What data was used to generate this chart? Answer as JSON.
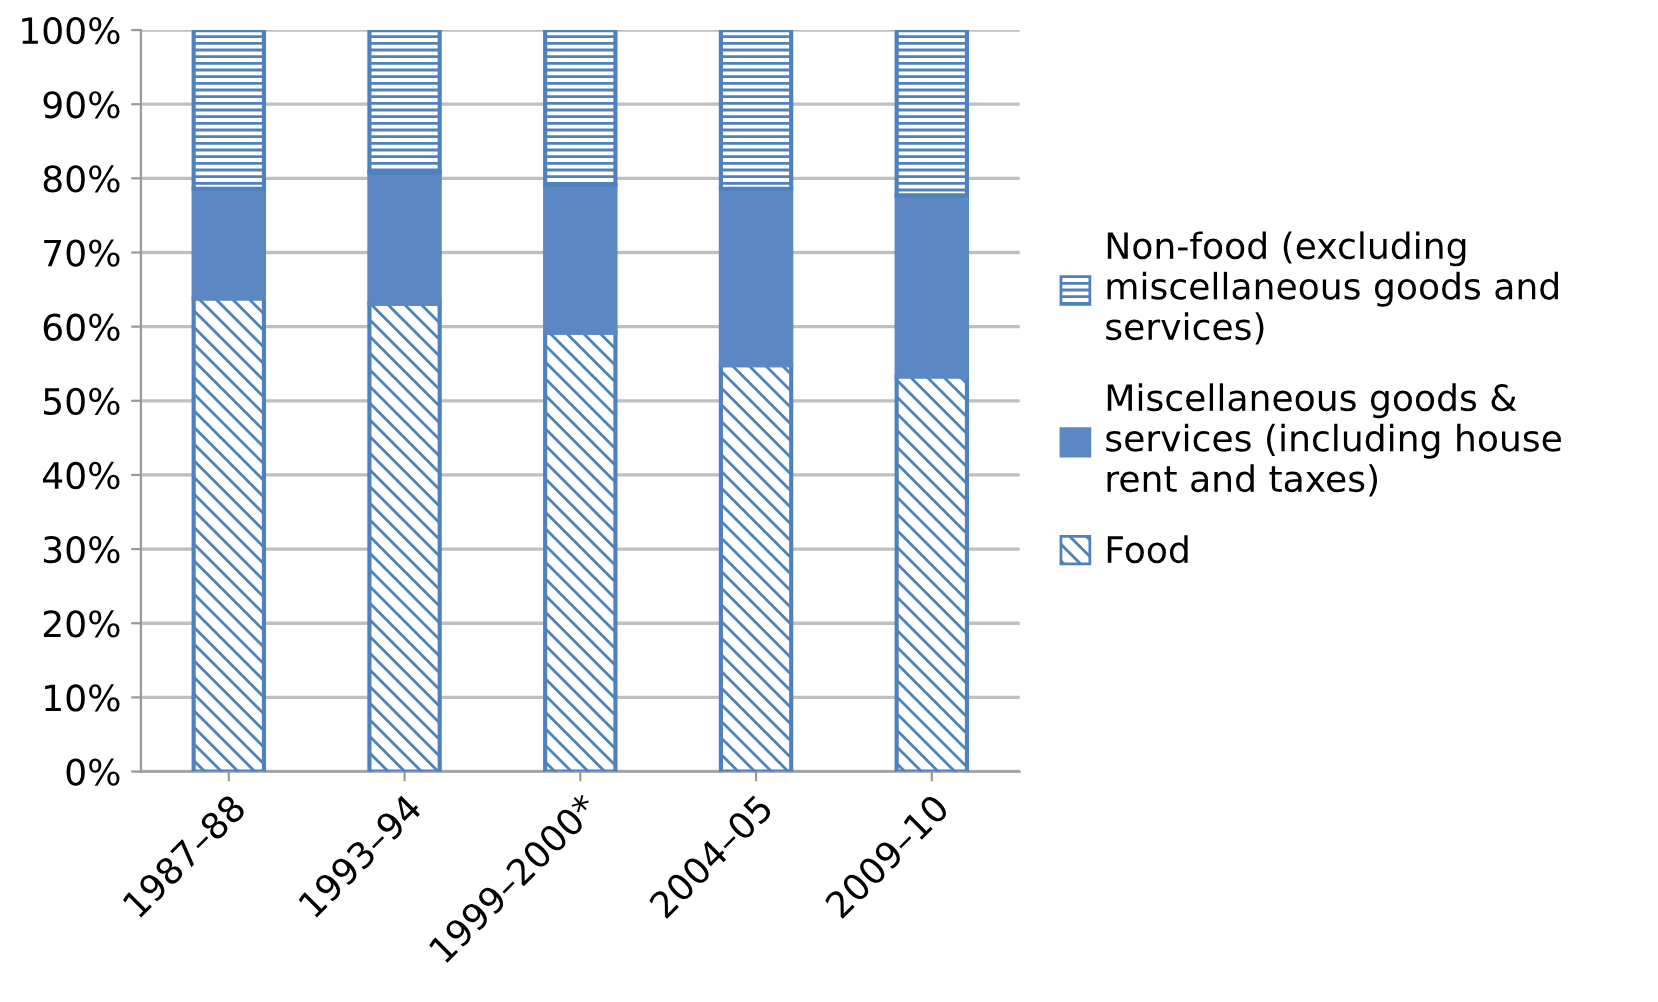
{
  "chart_data": {
    "type": "bar",
    "stacked": true,
    "categories": [
      "1987–88",
      "1993–94",
      "1999–2000*",
      "2004–05",
      "2009–10"
    ],
    "series": [
      {
        "name": "Food",
        "color": "#4f81bd",
        "values": [
          63.8,
          63.1,
          59.2,
          54.8,
          53.3
        ]
      },
      {
        "name": "Miscellaneous goods & services (including house rent and taxes)",
        "color": "#5b87c2",
        "values": [
          14.8,
          17.7,
          19.9,
          23.8,
          24.4
        ]
      },
      {
        "name": "Non-food (excluding miscellaneous goods and services)",
        "color": "#4f81bd",
        "values": [
          21.4,
          19.2,
          20.9,
          21.4,
          22.3
        ]
      }
    ],
    "ylim": [
      0,
      100
    ],
    "yticks": [
      {
        "value": 0,
        "label": "0%"
      },
      {
        "value": 10,
        "label": "10%"
      },
      {
        "value": 20,
        "label": "20%"
      },
      {
        "value": 30,
        "label": "30%"
      },
      {
        "value": 40,
        "label": "40%"
      },
      {
        "value": 50,
        "label": "50%"
      },
      {
        "value": 60,
        "label": "60%"
      },
      {
        "value": 70,
        "label": "70%"
      },
      {
        "value": 80,
        "label": "80%"
      },
      {
        "value": 90,
        "label": "90%"
      },
      {
        "value": 100,
        "label": "100%"
      }
    ],
    "grid": "y",
    "legend": "right"
  }
}
